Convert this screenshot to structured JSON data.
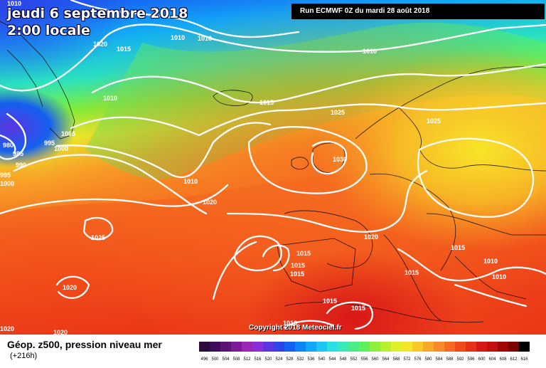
{
  "header": {
    "date": "jeudi 6 septembre 2018",
    "time": "2:00 locale",
    "run": "Run ECMWF 0Z du mardi 28 août 2018"
  },
  "copyright": "Copyright 2018 Meteociel.fr",
  "caption": {
    "title": "Géop. z500, pression niveau mer",
    "lead": "(+216h)"
  },
  "isobar_labels": [
    {
      "text": "1010"
    },
    {
      "text": "1010"
    },
    {
      "text": "1010"
    },
    {
      "text": "1020"
    },
    {
      "text": "1015"
    },
    {
      "text": "1010"
    },
    {
      "text": "1010"
    },
    {
      "text": "1015"
    },
    {
      "text": "1025"
    },
    {
      "text": "1005"
    },
    {
      "text": "995"
    },
    {
      "text": "1000"
    },
    {
      "text": "980"
    },
    {
      "text": "985"
    },
    {
      "text": "990"
    },
    {
      "text": "995"
    },
    {
      "text": "1000"
    },
    {
      "text": "1030"
    },
    {
      "text": "1025"
    },
    {
      "text": "1010"
    },
    {
      "text": "1020"
    },
    {
      "text": "1025"
    },
    {
      "text": "1020"
    },
    {
      "text": "1015"
    },
    {
      "text": "1015"
    },
    {
      "text": "1015"
    },
    {
      "text": "1015"
    },
    {
      "text": "1010"
    },
    {
      "text": "1010"
    },
    {
      "text": "1015"
    },
    {
      "text": "1020"
    },
    {
      "text": "1015"
    },
    {
      "text": "1015"
    },
    {
      "text": "1010"
    },
    {
      "text": "1020"
    },
    {
      "text": "1020"
    }
  ],
  "legend": {
    "values": [
      "496",
      "500",
      "504",
      "508",
      "512",
      "516",
      "520",
      "524",
      "528",
      "532",
      "536",
      "540",
      "544",
      "548",
      "552",
      "556",
      "560",
      "564",
      "568",
      "572",
      "576",
      "580",
      "584",
      "588",
      "592",
      "596",
      "600",
      "604",
      "608",
      "612",
      "616"
    ],
    "colors": [
      "#2b0a3d",
      "#3d0d5a",
      "#5a1475",
      "#7a1a96",
      "#9b25b5",
      "#8a2dd6",
      "#5a35e0",
      "#2d45e8",
      "#1460f0",
      "#0b84f5",
      "#11a6f7",
      "#1cc6f2",
      "#2ae0e0",
      "#3ae8b8",
      "#4aec8a",
      "#5ef05a",
      "#8ef03a",
      "#b8f030",
      "#e0f02a",
      "#f5e628",
      "#f8c828",
      "#f8a828",
      "#f88a28",
      "#f56a20",
      "#f04a1a",
      "#e83018",
      "#d81818",
      "#c01010",
      "#a00808",
      "#7a0404",
      "#000000"
    ]
  }
}
